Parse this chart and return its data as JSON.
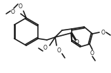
{
  "bg_color": "#ffffff",
  "line_color": "#1a1a1a",
  "line_width": 1.2,
  "text_color": "#1a1a1a",
  "font_size": 5.5
}
